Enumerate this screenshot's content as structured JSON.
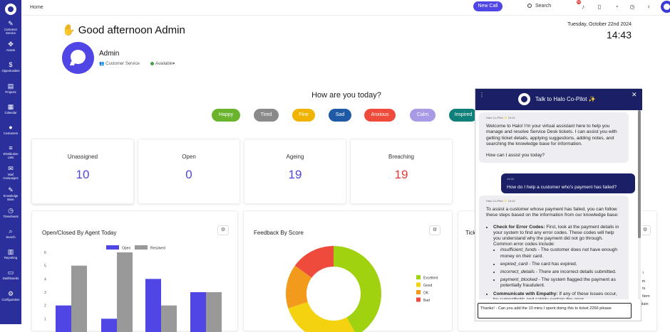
{
  "sidebar": {
    "items": [
      {
        "label": "Customer Service",
        "icon": "✎"
      },
      {
        "label": "Assets",
        "icon": "✥"
      },
      {
        "label": "Opportunities",
        "icon": "$"
      },
      {
        "label": "Projects",
        "icon": "▤"
      },
      {
        "label": "Calendar",
        "icon": "▦"
      },
      {
        "label": "Customers",
        "icon": "●"
      },
      {
        "label": "Distribution Lists",
        "icon": "≡"
      },
      {
        "label": "Mail Campaigns",
        "icon": "✉"
      },
      {
        "label": "Knowledge Base",
        "icon": "✎"
      },
      {
        "label": "Timesheets",
        "icon": "◷"
      },
      {
        "label": "Search",
        "icon": "⌕"
      },
      {
        "label": "Reporting",
        "icon": "▥"
      },
      {
        "label": "Dashboards",
        "icon": "▭"
      },
      {
        "label": "Configuration",
        "icon": "⚙"
      }
    ]
  },
  "topbar": {
    "breadcrumb": "Home",
    "new_call": "New Call",
    "search": "Search",
    "notif_count": "99"
  },
  "greeting": {
    "text": "Good afternoon Admin",
    "date": "Tuesday, October 22nd 2024",
    "time": "14:43"
  },
  "user": {
    "name": "Admin",
    "role": "Customer Service",
    "status": "Available"
  },
  "mood": {
    "question": "How are you today?",
    "options": [
      {
        "label": "Happy",
        "color": "#6ab42d"
      },
      {
        "label": "Tired",
        "color": "#8a8a8a"
      },
      {
        "label": "Fine",
        "color": "#f0b400"
      },
      {
        "label": "Sad",
        "color": "#1f5aa6"
      },
      {
        "label": "Anxious",
        "color": "#ef4b3c"
      },
      {
        "label": "Calm",
        "color": "#a99ae6"
      },
      {
        "label": "Inspired",
        "color": "#0f7f7a"
      }
    ]
  },
  "stats": [
    {
      "label": "Unassigned",
      "value": "10",
      "color": "#4f46e5"
    },
    {
      "label": "Open",
      "value": "0",
      "color": "#4f46e5"
    },
    {
      "label": "Ageing",
      "value": "19",
      "color": "#4f46e5"
    },
    {
      "label": "Breaching",
      "value": "19",
      "color": "#e53935"
    }
  ],
  "chart_data": [
    {
      "type": "bar",
      "title": "Open/Closed By Agent Today",
      "ylim": [
        0,
        6
      ],
      "yticks": [
        "6",
        "5",
        "4",
        "3",
        "2",
        "1"
      ],
      "series": [
        {
          "name": "Open",
          "color": "#4f46e5",
          "values": [
            2,
            1,
            4,
            3
          ]
        },
        {
          "name": "Resolved",
          "color": "#999999",
          "values": [
            5,
            6,
            2,
            3
          ]
        }
      ]
    },
    {
      "type": "pie",
      "title": "Feedback By Score",
      "slices": [
        {
          "label": "Excellent",
          "value": 42,
          "color": "#a0d20f"
        },
        {
          "label": "Good",
          "value": 28,
          "color": "#f4d20f"
        },
        {
          "label": "OK",
          "value": 15,
          "color": "#f29a1c"
        },
        {
          "label": "Bad",
          "value": 15,
          "color": "#ef4b3c"
        }
      ]
    }
  ],
  "third_chart": {
    "title_fragment": "Tick",
    "legend_fragments": [
      "n",
      "tem",
      "ents",
      "Item",
      "plain"
    ]
  },
  "copilot": {
    "title": "Talk to Halo Co-Pilot ✨",
    "msg1": {
      "meta": "Halo Co-Pilot ✨ 14:41",
      "p1": "Welcome to Halo! I'm your virtual assistant here to help you manage and resolve Service Desk tickets. I can assist you with getting ticket details, applying suggestions, adding notes, and searching the knowledge base for information.",
      "p2": "How can I assist you today?"
    },
    "msg2": {
      "meta": "14:42",
      "text": "How do I help a customer who's payment has failed?"
    },
    "msg3": {
      "meta": "Halo Co-Pilot ✨ 14:42",
      "intro": "To assist a customer whose payment has failed, you can follow these steps based on the information from our knowledge base:",
      "item1_head": "Check for Error Codes:",
      "item1_body": " First, look at the payment details in your system to find any error codes. These codes will help you understand why the payment did not go through. Common error codes include:",
      "codes": [
        {
          "code": "insufficient_funds",
          "desc": " - The customer does not have enough money on their card."
        },
        {
          "code": "expired_card",
          "desc": " - The card has expired."
        },
        {
          "code": "incorrect_details",
          "desc": " - There are incorrect details submitted."
        },
        {
          "code": "payment_blocked",
          "desc": " - The system flagged the payment as potentially fraudulent."
        }
      ],
      "item2_head": "Communicate with Empathy:",
      "item2_body": " If any of these issues occur, be sympathetic and calmly explain the error"
    },
    "input_value": "Thanks! - Can you add the 10 mins I spent doing this to ticket 2266 please"
  }
}
